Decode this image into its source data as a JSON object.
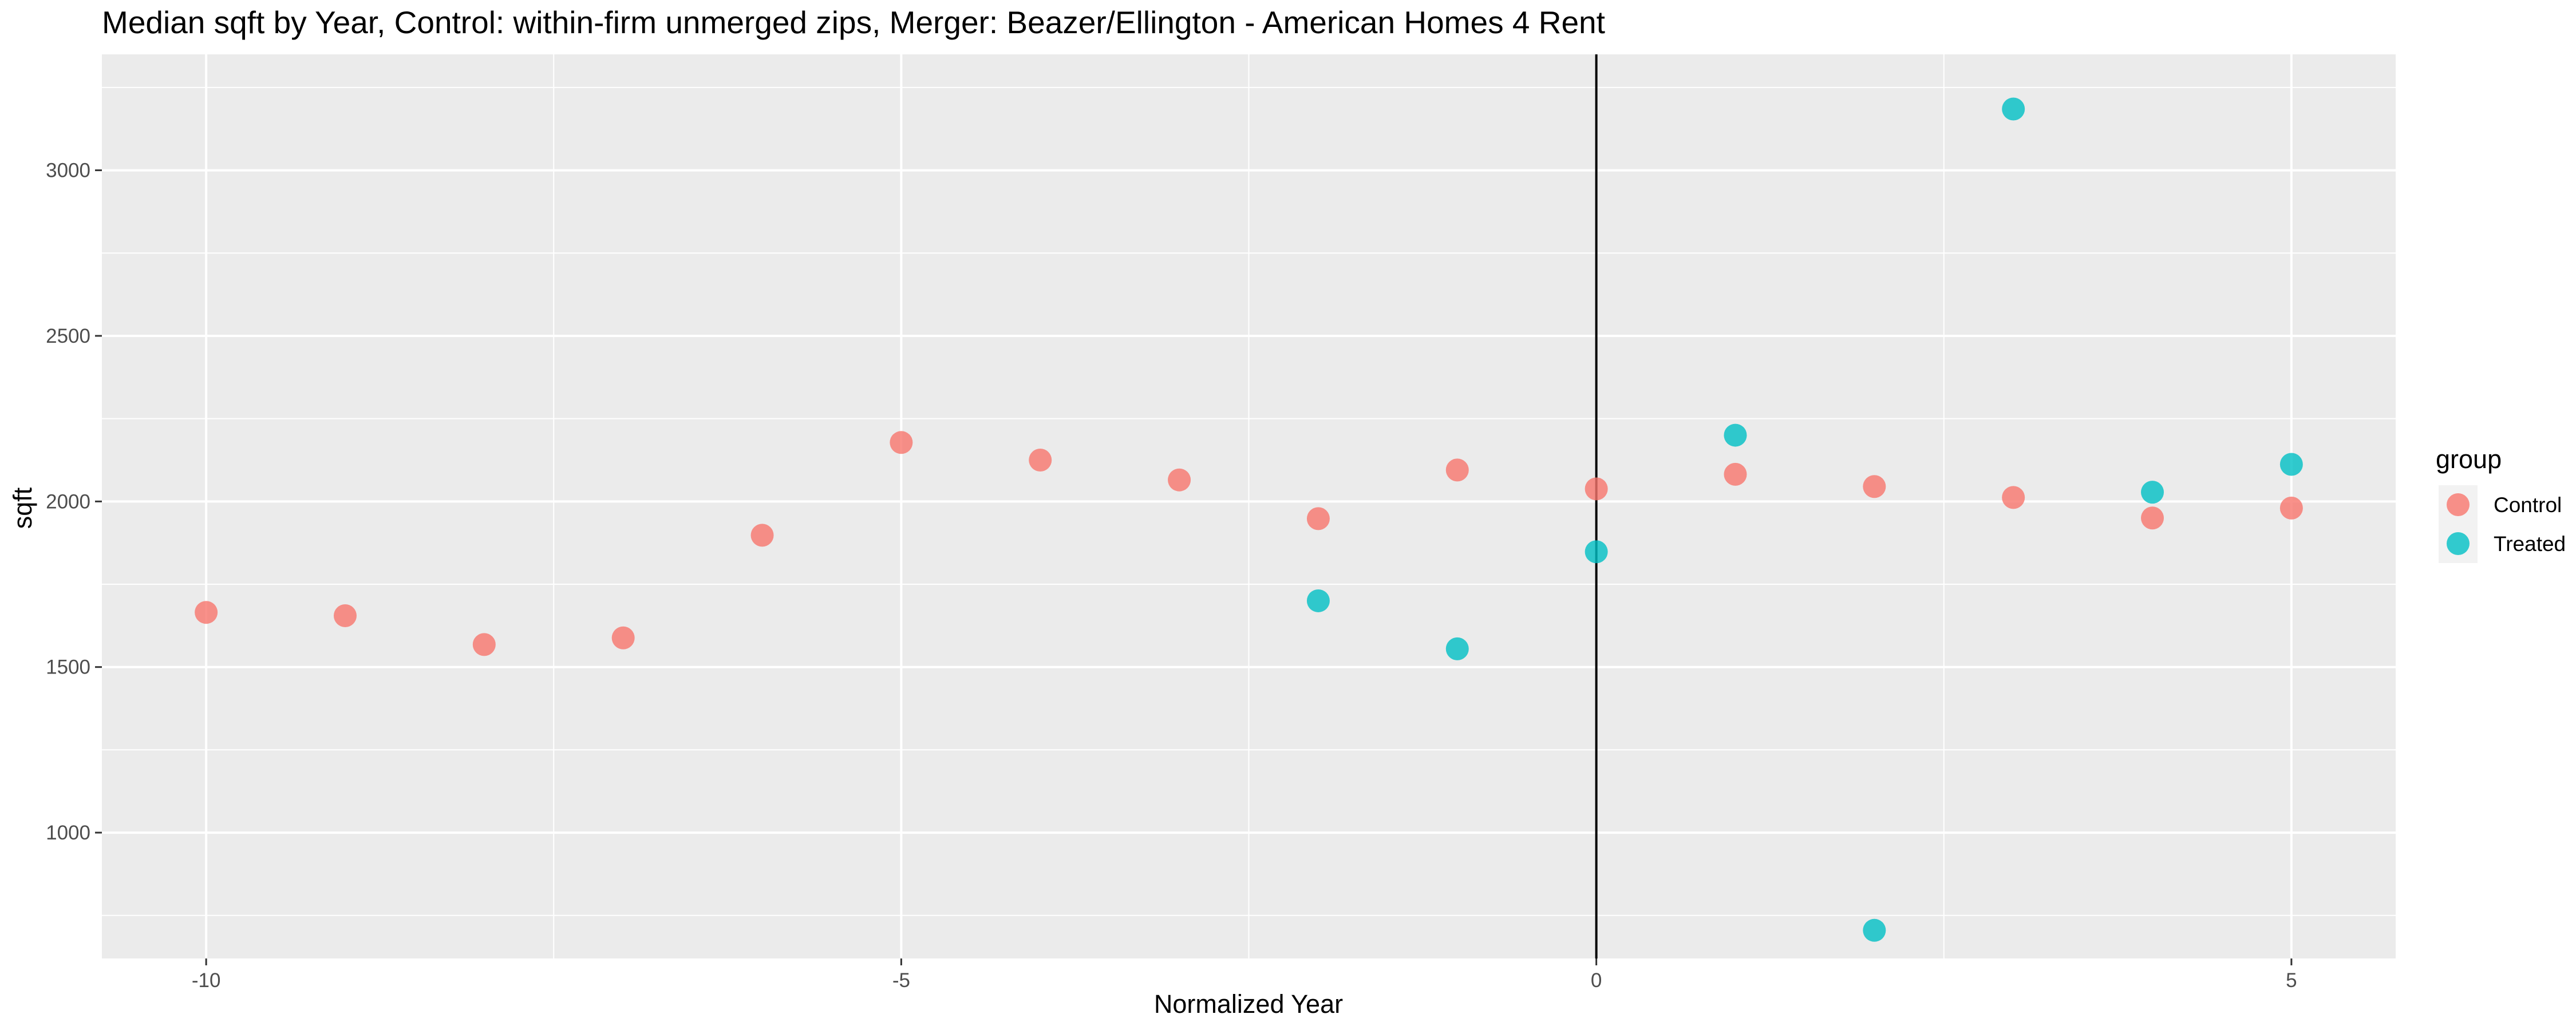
{
  "chart_data": {
    "type": "scatter",
    "title": "Median sqft by Year, Control: within-firm unmerged zips, Merger: Beazer/Ellington - American Homes 4 Rent",
    "xlabel": "Normalized Year",
    "ylabel": "sqft",
    "xlim": [
      -10.75,
      5.75
    ],
    "ylim": [
      620,
      3350
    ],
    "x_ticks": [
      -10,
      -5,
      0,
      5
    ],
    "y_ticks": [
      1000,
      1500,
      2000,
      2500,
      3000
    ],
    "x_ticks_labels": [
      "-10",
      "-5",
      "0",
      "5"
    ],
    "y_ticks_labels": [
      "1000",
      "1500",
      "2000",
      "2500",
      "3000"
    ],
    "grid": true,
    "vline_x": 0,
    "legend": {
      "title": "group",
      "position": "right"
    },
    "series": [
      {
        "name": "Control",
        "color": "#F8766D",
        "points": [
          {
            "x": -10,
            "y": 1665
          },
          {
            "x": -9,
            "y": 1655
          },
          {
            "x": -8,
            "y": 1568
          },
          {
            "x": -7,
            "y": 1588
          },
          {
            "x": -6,
            "y": 1898
          },
          {
            "x": -5,
            "y": 2178
          },
          {
            "x": -4,
            "y": 2125
          },
          {
            "x": -3,
            "y": 2065
          },
          {
            "x": -2,
            "y": 1948
          },
          {
            "x": -1,
            "y": 2095
          },
          {
            "x": 0,
            "y": 2038
          },
          {
            "x": 1,
            "y": 2082
          },
          {
            "x": 2,
            "y": 2045
          },
          {
            "x": 3,
            "y": 2012
          },
          {
            "x": 4,
            "y": 1950
          },
          {
            "x": 5,
            "y": 1980
          }
        ]
      },
      {
        "name": "Treated",
        "color": "#00BFC4",
        "points": [
          {
            "x": -2,
            "y": 1700
          },
          {
            "x": -1,
            "y": 1555
          },
          {
            "x": 0,
            "y": 1848
          },
          {
            "x": 1,
            "y": 2200
          },
          {
            "x": 2,
            "y": 705
          },
          {
            "x": 3,
            "y": 3185
          },
          {
            "x": 4,
            "y": 2028
          },
          {
            "x": 5,
            "y": 2112
          }
        ]
      }
    ]
  }
}
